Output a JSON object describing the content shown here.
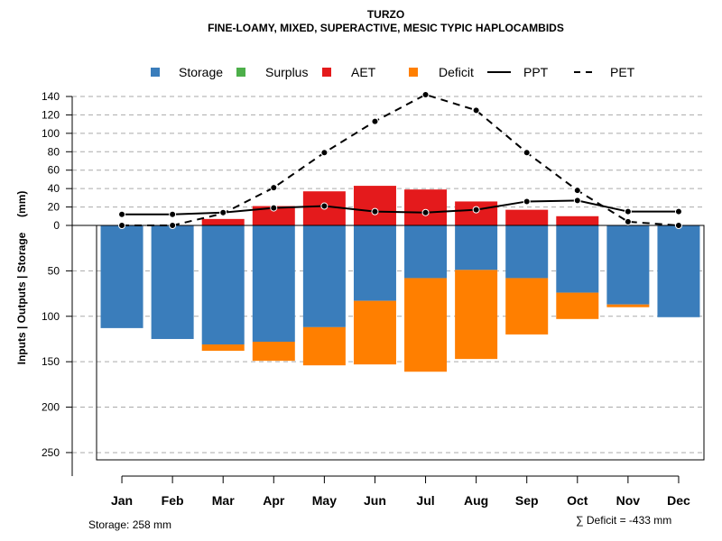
{
  "title": "TURZO",
  "subtitle": "FINE-LOAMY, MIXED, SUPERACTIVE, MESIC TYPIC HAPLOCAMBIDS",
  "legend": {
    "storage": {
      "label": "Storage",
      "color": "#3A7DBB"
    },
    "surplus": {
      "label": "Surplus",
      "color": "#4DAF4A"
    },
    "aet": {
      "label": "AET",
      "color": "#E41A1C"
    },
    "deficit": {
      "label": "Deficit",
      "color": "#FF7F00"
    },
    "ppt": {
      "label": "PPT"
    },
    "pet": {
      "label": "PET"
    }
  },
  "storage_note": "Storage: 258 mm",
  "deficit_note": "∑ Deficit = -433 mm",
  "chart_data": {
    "type": "bar",
    "title": "TURZO",
    "subtitle": "FINE-LOAMY, MIXED, SUPERACTIVE, MESIC TYPIC HAPLOCAMBIDS",
    "ylabel": "Inputs | Outputs | Storage     (mm)",
    "xlabel": "",
    "categories": [
      "Jan",
      "Feb",
      "Mar",
      "Apr",
      "May",
      "Jun",
      "Jul",
      "Aug",
      "Sep",
      "Oct",
      "Nov",
      "Dec"
    ],
    "upper_ylim": [
      0,
      140
    ],
    "upper_ticks": [
      "140",
      "120",
      "100",
      "80",
      "60",
      "40",
      "20",
      "0"
    ],
    "lower_ylim": [
      0,
      258
    ],
    "lower_ticks": [
      "50",
      "100",
      "150",
      "200",
      "250"
    ],
    "grid": true,
    "series": [
      {
        "name": "AET",
        "values": [
          0,
          0,
          7,
          21,
          37,
          43,
          39,
          26,
          17,
          10,
          0,
          0
        ]
      },
      {
        "name": "Storage",
        "values": [
          113,
          125,
          131,
          128,
          112,
          83,
          58,
          49,
          58,
          74,
          87,
          101
        ]
      },
      {
        "name": "Deficit",
        "values": [
          0,
          0,
          7,
          21,
          42,
          70,
          103,
          98,
          62,
          29,
          3,
          0
        ]
      },
      {
        "name": "PPT",
        "values": [
          12,
          12,
          14,
          19,
          21,
          15,
          14,
          17,
          26,
          27,
          15,
          15
        ]
      },
      {
        "name": "PET",
        "values": [
          0,
          0,
          13,
          41,
          79,
          113,
          142,
          125,
          79,
          38,
          4,
          0
        ]
      }
    ]
  }
}
